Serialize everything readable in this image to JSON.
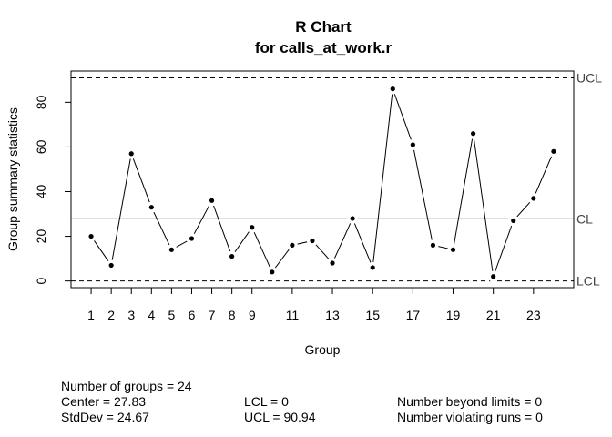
{
  "chart_data": {
    "type": "line",
    "title": "R Chart",
    "subtitle": "for calls_at_work.r",
    "xlabel": "Group",
    "ylabel": "Group summary statistics",
    "x": [
      1,
      2,
      3,
      4,
      5,
      6,
      7,
      8,
      9,
      10,
      11,
      12,
      13,
      14,
      15,
      16,
      17,
      18,
      19,
      20,
      21,
      22,
      23,
      24
    ],
    "values": [
      20,
      7,
      57,
      33,
      14,
      19,
      36,
      11,
      24,
      4,
      16,
      18,
      8,
      28,
      6,
      86,
      61,
      16,
      14,
      66,
      2,
      27,
      37,
      58
    ],
    "xticks": [
      "1",
      "2",
      "3",
      "4",
      "5",
      "6",
      "7",
      "8",
      "9",
      "11",
      "13",
      "15",
      "17",
      "19",
      "21",
      "23"
    ],
    "xtick_values": [
      1,
      2,
      3,
      4,
      5,
      6,
      7,
      8,
      9,
      11,
      13,
      15,
      17,
      19,
      21,
      23
    ],
    "yticks": [
      "0",
      "20",
      "40",
      "60",
      "80"
    ],
    "ytick_values": [
      0,
      20,
      40,
      60,
      80
    ],
    "ylim": [
      -3,
      94
    ],
    "xlim": [
      0,
      25
    ],
    "limits": {
      "ucl": {
        "label": "UCL",
        "value": 90.94
      },
      "cl": {
        "label": "CL",
        "value": 27.83
      },
      "lcl": {
        "label": "LCL",
        "value": 0
      }
    },
    "grid": false,
    "legend": "none"
  },
  "stats": {
    "groups": "Number of groups = 24",
    "center": "Center = 27.83",
    "stddev": "StdDev = 24.67",
    "lcl": "LCL = 0",
    "ucl": "UCL = 90.94",
    "beyond": "Number beyond limits = 0",
    "violating": "Number violating runs = 0"
  }
}
